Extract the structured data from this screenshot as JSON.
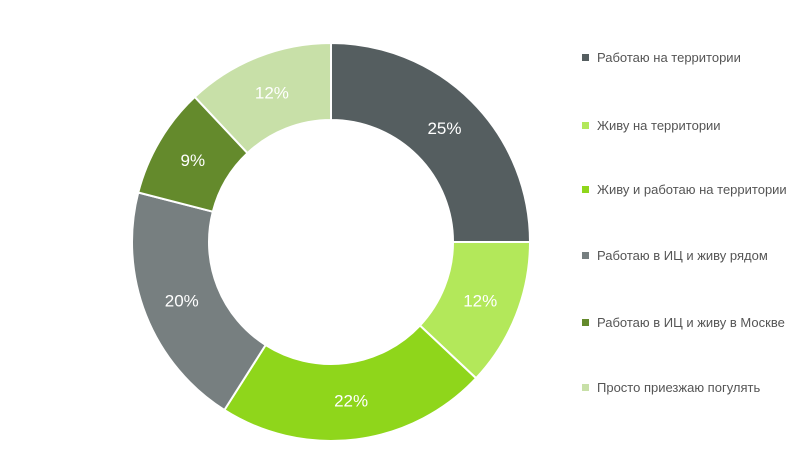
{
  "chart_data": {
    "type": "pie",
    "style": "donut",
    "legend_position": "right",
    "categories": [
      "Работаю на территории",
      "Живу на территории",
      "Живу и работаю на территории",
      "Работаю в ИЦ и живу рядом",
      "Работаю в ИЦ и живу в Москве",
      "Просто приезжаю погулять"
    ],
    "values": [
      25,
      12,
      22,
      20,
      9,
      12
    ],
    "labels": [
      "25%",
      "12%",
      "22%",
      "20%",
      "9%",
      "12%"
    ],
    "colors": [
      "#555e60",
      "#b3e85a",
      "#8fd61b",
      "#777f80",
      "#648a2c",
      "#c8e0a8"
    ]
  }
}
